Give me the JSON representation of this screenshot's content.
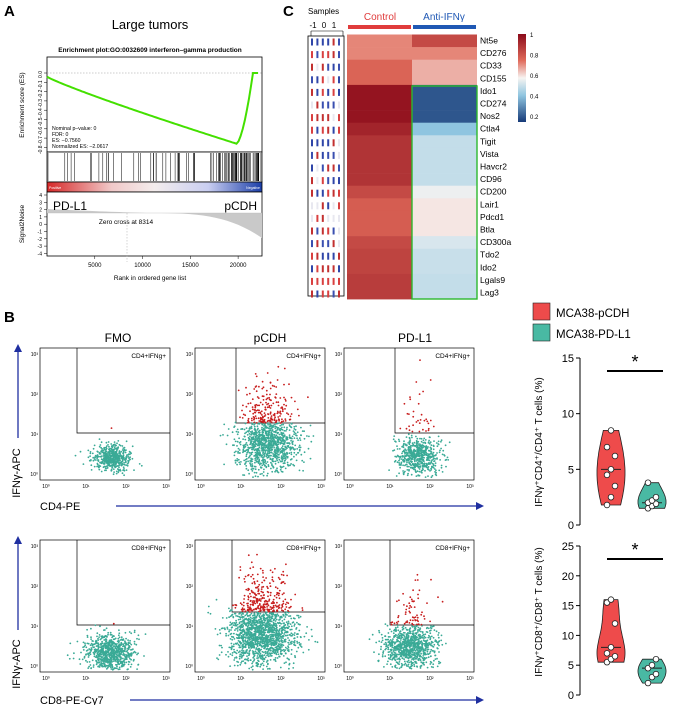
{
  "panels": {
    "A": {
      "letter": "A",
      "title": "Large tumors",
      "plot_title": "Enrichment plot:GO:0032609 interferon–gamma production",
      "ylabel_es": "Enrichment score (ES)",
      "ylabel_signal": "Signal2Noise",
      "xlabel": "Rank in ordered gene list",
      "stats": [
        "Nominal p–value: 0",
        "FDR: 0",
        "ES: –0.7560",
        "Normalized ES: –2.0617"
      ],
      "left_group": "PD-L1",
      "right_group": "pCDH",
      "zero_cross": "Zero cross at 8314",
      "es_ticks": [
        "0.0",
        "-0.1",
        "-0.2",
        "-0.3",
        "-0.4",
        "-0.5",
        "-0.6",
        "-0.7",
        "-0.8"
      ],
      "signal_ticks": [
        "4",
        "3",
        "2",
        "1",
        "0",
        "-1",
        "-2",
        "-3",
        "-4"
      ],
      "x_ticks": [
        "5000",
        "10000",
        "15000",
        "20000"
      ],
      "color_bar_left_label": "Positive",
      "color_bar_right_label": "Negative",
      "colors": {
        "curve": "#44e000",
        "pos": "#d62828",
        "neg": "#1b3ea8"
      }
    },
    "C": {
      "letter": "C",
      "samples_label": "Samples",
      "sample_scale": [
        "-1",
        "0",
        "1"
      ],
      "control_label": "Control",
      "treatment_label": "Anti-IFNγ",
      "genes": [
        "Nt5e",
        "CD276",
        "CD33",
        "CD155",
        "Ido1",
        "CD274",
        "Nos2",
        "Ctla4",
        "Tigit",
        "Vista",
        "Havcr2",
        "CD96",
        "CD200",
        "Lair1",
        "Pdcd1",
        "Btla",
        "CD300a",
        "Tdo2",
        "Ido2",
        "Lgals9",
        "Lag3"
      ],
      "control_values": [
        0.66,
        0.66,
        0.72,
        0.72,
        0.97,
        0.97,
        0.97,
        0.92,
        0.87,
        0.87,
        0.87,
        0.87,
        0.8,
        0.74,
        0.74,
        0.74,
        0.8,
        0.82,
        0.82,
        0.84,
        0.84
      ],
      "treatment_values": [
        0.8,
        0.66,
        0.6,
        0.6,
        0.06,
        0.06,
        0.06,
        0.3,
        0.4,
        0.4,
        0.4,
        0.4,
        0.48,
        0.52,
        0.52,
        0.52,
        0.44,
        0.41,
        0.41,
        0.4,
        0.4
      ],
      "colorbar_ticks": [
        "1",
        "0.8",
        "0.6",
        "0.4",
        "0.2"
      ],
      "colors": {
        "control": "#e03c3c",
        "treatment": "#1f58b4",
        "box": "#2db82d"
      }
    },
    "B": {
      "letter": "B",
      "columns": [
        "FMO",
        "pCDH",
        "PD-L1"
      ],
      "row1_gate": "CD4+IFNg+",
      "row2_gate": "CD8+IFNg+",
      "row1_xlabel": "CD4-PE",
      "row2_xlabel": "CD8-PE-Cy7",
      "ylabel": "IFNγ-APC",
      "tick_labels": [
        "10⁰",
        "10¹",
        "10²",
        "10³"
      ],
      "colors": {
        "neg": "#3aaa96",
        "pos": "#c81e1e",
        "axis": "#1f2fa0"
      }
    },
    "violin": {
      "legend": [
        {
          "label": "MCA38-pCDH",
          "color": "#ee4b4b"
        },
        {
          "label": "MCA38-PD-L1",
          "color": "#49b9a3"
        }
      ],
      "top_ylabel": "IFNγ⁺CD4⁺/CD4⁺ T cells (%)",
      "bottom_ylabel": "IFNγ⁺CD8⁺/CD8⁺ T cells (%)",
      "significance": "*"
    }
  },
  "chart_data": [
    {
      "type": "scatter",
      "title": "",
      "ylabel": "IFNγ⁺CD4⁺/CD4⁺ T cells (%)",
      "ylim": [
        0,
        15
      ],
      "yticks": [
        "0",
        "5",
        "10",
        "15"
      ],
      "series": [
        {
          "name": "MCA38-pCDH",
          "values": [
            1.8,
            2.5,
            3.5,
            4.5,
            5.0,
            6.2,
            7.0,
            8.5
          ]
        },
        {
          "name": "MCA38-PD-L1",
          "values": [
            1.5,
            1.7,
            1.9,
            2.0,
            2.2,
            2.5,
            3.8
          ]
        }
      ]
    },
    {
      "type": "scatter",
      "title": "",
      "ylabel": "IFNγ⁺CD8⁺/CD8⁺ T cells (%)",
      "ylim": [
        0,
        25
      ],
      "yticks": [
        "0",
        "5",
        "10",
        "15",
        "20",
        "25"
      ],
      "series": [
        {
          "name": "MCA38-pCDH",
          "values": [
            5.5,
            6.0,
            6.5,
            7.0,
            8.0,
            12.0,
            15.5,
            16.0
          ]
        },
        {
          "name": "MCA38-PD-L1",
          "values": [
            2.0,
            3.0,
            3.5,
            4.5,
            5.0,
            6.0
          ]
        }
      ]
    }
  ]
}
